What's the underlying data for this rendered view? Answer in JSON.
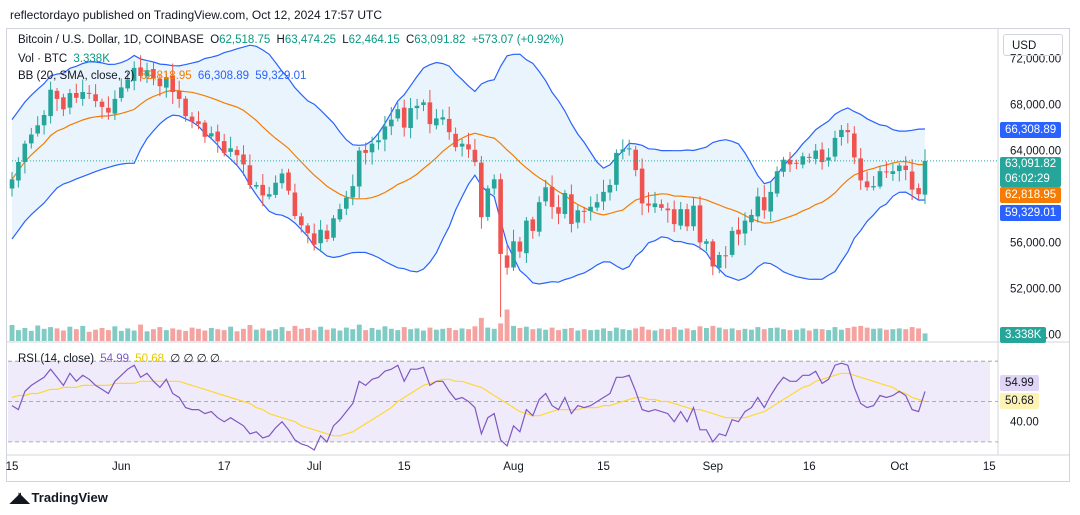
{
  "publisher": "reflectordayo published on TradingView.com, Oct 12, 2024 17:57 UTC",
  "legend": {
    "symbol": "Bitcoin / U.S. Dollar, 1D, COINBASE",
    "o_label": "O",
    "o": "62,518.75",
    "h_label": "H",
    "h": "63,474.25",
    "l_label": "L",
    "l": "62,464.15",
    "c_label": "C",
    "c": "63,091.82",
    "change": "+573.07 (+0.92%)",
    "vol_label": "Vol · BTC",
    "vol": "3.338K",
    "bb_label": "BB (20, SMA, close, 2)",
    "bb_basis": "62,818.95",
    "bb_upper": "66,308.89",
    "bb_lower": "59,329.01",
    "rsi_label": "RSI (14, close)",
    "rsi": "54.99",
    "rsi_ma": "50.68",
    "rsi_extra": "∅ ∅ ∅ ∅"
  },
  "currency_button": "USD",
  "price_tags": {
    "upper": "66,308.89",
    "last": "63,091.82",
    "countdown": "06:02:29",
    "basis": "62,818.95",
    "lower": "59,329.01",
    "volume": "3.338K",
    "rsi": "54.99",
    "rsi_ma": "50.68"
  },
  "colors": {
    "up": "#26a69a",
    "down": "#ef5350",
    "vol_up": "#80cbc4",
    "vol_down": "#f5a3a0",
    "bb_band": "#2962ff",
    "bb_basis": "#f57c00",
    "bb_fill": "#e3f0fb",
    "rsi_line": "#7e57c2",
    "rsi_ma": "#fdd835",
    "rsi_fill": "#f0ebfa",
    "tag_upper": "#2962ff",
    "tag_last": "#26a69a",
    "tag_basis": "#f57c00",
    "tag_lower": "#2962ff",
    "tag_rsi": "#e1d5f5",
    "tag_rsi_ma": "#fdf3b4"
  },
  "logo": "TradingView",
  "chart_data": [
    {
      "type": "candlestick",
      "title": "Bitcoin / U.S. Dollar, 1D, COINBASE",
      "x_tick_labels": [
        "15",
        "Jun",
        "17",
        "Jul",
        "15",
        "Aug",
        "15",
        "Sep",
        "16",
        "Oct",
        "15"
      ],
      "y_tick_labels": [
        "72,000.00",
        "68,000.00",
        "64,000.00",
        "60,000.00",
        "56,000.00",
        "52,000.00",
        "48,000.00"
      ],
      "ylim": [
        47500,
        74500
      ],
      "series": [
        {
          "name": "close",
          "values": [
            61500,
            63000,
            64600,
            65400,
            66200,
            67100,
            69300,
            68500,
            67600,
            69000,
            68600,
            69100,
            69000,
            68300,
            67800,
            67300,
            68500,
            69500,
            70200,
            71200,
            70500,
            71000,
            70300,
            69600,
            70400,
            69100,
            68500,
            67000,
            66500,
            66300,
            65200,
            65500,
            64800,
            63800,
            64200,
            63600,
            62800,
            61000,
            61000,
            60100,
            60200,
            61200,
            62000,
            60500,
            58300,
            57500,
            56800,
            55800,
            57100,
            56300,
            58100,
            58900,
            59900,
            60900,
            64000,
            63800,
            64600,
            64900,
            66100,
            66700,
            67600,
            66000,
            67700,
            67900,
            68200,
            66300,
            66800,
            66900,
            65600,
            64300,
            64600,
            64100,
            63000,
            58200,
            60700,
            61500,
            55000,
            53800,
            56100,
            55200,
            57900,
            57000,
            59500,
            60800,
            59100,
            58500,
            60300,
            57600,
            58800,
            58700,
            59100,
            59500,
            60400,
            61000,
            63800,
            64100,
            64200,
            62300,
            59400,
            59200,
            59400,
            59000,
            58800,
            57600,
            58900,
            57400,
            59200,
            56000,
            56100,
            53900,
            54900,
            54800,
            57000,
            56700,
            57900,
            58400,
            60000,
            58800,
            60400,
            62200,
            63200,
            62800,
            62900,
            63500,
            63400,
            64000,
            63000,
            63400,
            65100,
            65800,
            65600,
            63400,
            61400,
            60800,
            60900,
            62200,
            62100,
            62200,
            62700,
            62300,
            60600,
            60200,
            63100
          ]
        }
      ]
    },
    {
      "type": "bar",
      "title": "Vol · BTC",
      "series": [
        {
          "name": "Vol · BTC",
          "values": [
            3.8,
            2.6,
            3.1,
            2.4,
            3.7,
            2.9,
            3.3,
            3.0,
            2.5,
            3.4,
            2.8,
            3.6,
            2.2,
            2.7,
            3.1,
            2.6,
            3.5,
            2.4,
            3.0,
            2.5,
            3.9,
            2.3,
            2.8,
            3.3,
            2.6,
            3.0,
            2.7,
            2.4,
            3.2,
            2.9,
            2.5,
            3.1,
            2.8,
            2.6,
            3.4,
            2.3,
            2.9,
            3.8,
            2.7,
            3.0,
            2.5,
            2.8,
            3.3,
            2.4,
            3.6,
            2.9,
            3.1,
            2.6,
            3.4,
            2.7,
            3.0,
            2.5,
            3.2,
            2.8,
            3.9,
            2.6,
            3.1,
            2.7,
            3.5,
            2.9,
            2.6,
            3.3,
            2.8,
            3.0,
            2.5,
            3.2,
            2.7,
            2.9,
            3.1,
            2.6,
            3.0,
            2.8,
            3.5,
            5.5,
            3.2,
            2.9,
            4.2,
            7.5,
            3.6,
            3.1,
            3.4,
            2.8,
            3.0,
            2.7,
            3.2,
            2.6,
            2.9,
            3.1,
            2.5,
            2.8,
            2.6,
            2.7,
            3.0,
            2.4,
            3.2,
            2.8,
            2.6,
            3.0,
            3.4,
            2.7,
            2.5,
            2.9,
            2.8,
            3.3,
            2.7,
            3.0,
            2.6,
            3.5,
            3.1,
            3.6,
            3.2,
            2.8,
            3.0,
            2.6,
            2.9,
            2.7,
            3.3,
            2.8,
            3.1,
            3.2,
            2.8,
            2.6,
            2.7,
            3.0,
            2.5,
            2.9,
            2.8,
            2.6,
            3.3,
            2.7,
            3.1,
            3.4,
            3.6,
            3.2,
            2.9,
            3.0,
            2.7,
            2.8,
            3.0,
            2.8,
            3.3,
            3.0,
            1.8
          ]
        }
      ]
    },
    {
      "type": "line",
      "title": "RSI (14, close)",
      "y_tick_labels": [
        "60.00",
        "40.00"
      ],
      "ylim": [
        25,
        78
      ],
      "series": [
        {
          "name": "RSI",
          "values": [
            48,
            46,
            55,
            58,
            60,
            62,
            66,
            62,
            58,
            64,
            60,
            63,
            61,
            58,
            56,
            54,
            60,
            63,
            66,
            68,
            62,
            64,
            60,
            57,
            61,
            54,
            52,
            47,
            46,
            46,
            44,
            45,
            42,
            40,
            42,
            40,
            38,
            34,
            35,
            32,
            33,
            37,
            40,
            36,
            31,
            29,
            28,
            26,
            33,
            30,
            38,
            41,
            45,
            49,
            60,
            58,
            61,
            62,
            65,
            66,
            68,
            60,
            66,
            66,
            67,
            58,
            60,
            60,
            55,
            51,
            52,
            50,
            47,
            34,
            42,
            44,
            31,
            28,
            38,
            35,
            46,
            43,
            51,
            54,
            48,
            46,
            52,
            44,
            48,
            47,
            48,
            50,
            52,
            54,
            62,
            62,
            63,
            55,
            46,
            45,
            46,
            45,
            44,
            40,
            45,
            40,
            47,
            36,
            36,
            30,
            34,
            33,
            41,
            40,
            45,
            47,
            52,
            47,
            53,
            58,
            62,
            60,
            60,
            63,
            63,
            65,
            59,
            61,
            68,
            69,
            68,
            57,
            49,
            47,
            48,
            53,
            52,
            53,
            55,
            53,
            46,
            45,
            55
          ]
        },
        {
          "name": "RSI MA",
          "values": [
            52,
            53,
            53,
            54,
            54,
            55,
            56,
            56,
            57,
            57,
            57,
            58,
            58,
            58,
            58,
            58,
            59,
            59,
            59,
            59,
            60,
            60,
            60,
            60,
            60,
            60,
            60,
            59,
            58,
            57,
            56,
            55,
            54,
            53,
            52,
            51,
            50,
            49,
            47,
            46,
            44,
            43,
            42,
            41,
            40,
            38,
            37,
            36,
            35,
            34,
            33,
            33,
            34,
            35,
            37,
            39,
            41,
            43,
            45,
            47,
            50,
            52,
            54,
            56,
            58,
            59,
            60,
            61,
            61,
            60,
            60,
            59,
            58,
            57,
            55,
            53,
            51,
            49,
            47,
            45,
            44,
            43,
            43,
            44,
            45,
            46,
            46,
            46,
            46,
            47,
            47,
            47,
            48,
            48,
            49,
            50,
            51,
            52,
            52,
            51,
            51,
            50,
            50,
            49,
            48,
            47,
            46,
            46,
            45,
            44,
            43,
            42,
            42,
            42,
            42,
            43,
            44,
            45,
            47,
            49,
            51,
            53,
            55,
            57,
            58,
            60,
            61,
            62,
            63,
            64,
            64,
            63,
            62,
            61,
            60,
            59,
            58,
            57,
            55,
            54,
            52,
            51,
            50
          ]
        }
      ]
    }
  ]
}
